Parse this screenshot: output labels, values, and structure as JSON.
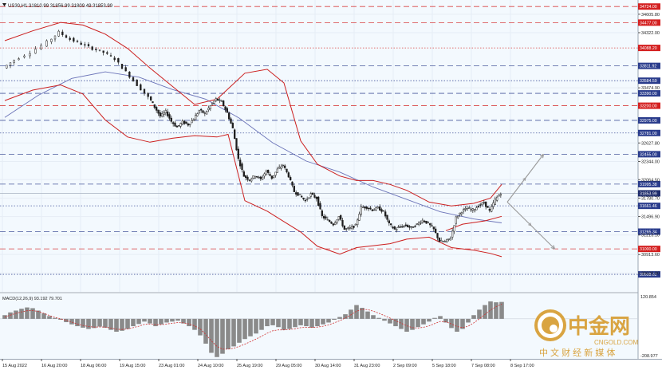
{
  "header": {
    "symbol_label": "US30,H1",
    "ohlc_label": "31810.99 31856.99 31809.49 31853.99"
  },
  "macd": {
    "label": "MACD(12,26,9) 93.192 79.701",
    "axis_top": "120.854",
    "axis_bottom": "-208.977"
  },
  "watermark": {
    "brand": "中金网",
    "site": "CNGOLD.COM",
    "slogan": "中 文 财 经 新 媒 体"
  },
  "colors": {
    "bg": "#ffffff",
    "plot_bg": "#f3f9fe",
    "grid": "#e6edf5",
    "candle": "#1e1e1e",
    "bollinger": "#cc1f1f",
    "ma": "#6b73b8",
    "red_level": "#d42020",
    "blue_level": "#2a3c8c",
    "arrow": "#9a9a9a",
    "current_price_bg": "#1e2b6b",
    "histogram": "#8a8a8a",
    "signal": "#d03030",
    "watermark_gold": "#d9a441"
  },
  "chart_data": {
    "type": "candlestick",
    "title": "",
    "ylim": [
      30340,
      34800
    ],
    "y_ticks": [
      "34605.80",
      "34322.00",
      "33474.90",
      "32627.80",
      "32344.00",
      "32064.50",
      "31780.70",
      "31496.90",
      "31213.10",
      "30913.60",
      "30629.80"
    ],
    "x_ticks": [
      "15 Aug 2022",
      "16 Aug 20:00",
      "18 Aug 06:00",
      "19 Aug 15:00",
      "23 Aug 01:00",
      "24 Aug 10:00",
      "25 Aug 19:00",
      "29 Aug 05:00",
      "30 Aug 14:00",
      "31 Aug 23:00",
      "2 Sep 09:00",
      "5 Sep 18:00",
      "7 Sep 08:00",
      "8 Sep 17:00"
    ],
    "current_price": {
      "value": 31853.99,
      "label": "31853.99"
    },
    "levels": [
      {
        "value": 34724.0,
        "label": "34724.00",
        "kind": "red",
        "style": "dash"
      },
      {
        "value": 34477.0,
        "label": "34477.00",
        "kind": "red",
        "style": "dash"
      },
      {
        "value": 34088.2,
        "label": "34088.20",
        "kind": "red",
        "style": "dot"
      },
      {
        "value": 33811.92,
        "label": "33811.92",
        "kind": "blue",
        "style": "dash"
      },
      {
        "value": 33584.59,
        "label": "33584.59",
        "kind": "blue",
        "style": "dot"
      },
      {
        "value": 33390.0,
        "label": "33390.00",
        "kind": "blue",
        "style": "dash"
      },
      {
        "value": 33200.0,
        "label": "33200.00",
        "kind": "red",
        "style": "dash"
      },
      {
        "value": 32975.0,
        "label": "32975.00",
        "kind": "blue",
        "style": "dash"
      },
      {
        "value": 32781.0,
        "label": "32781.00",
        "kind": "blue",
        "style": "dot"
      },
      {
        "value": 32455.0,
        "label": "32455.00",
        "kind": "blue",
        "style": "dash"
      },
      {
        "value": 31995.38,
        "label": "31995.38",
        "kind": "blue",
        "style": "dash"
      },
      {
        "value": 31661.46,
        "label": "31661.46",
        "kind": "blue",
        "style": "dot"
      },
      {
        "value": 31265.34,
        "label": "31265.34",
        "kind": "blue",
        "style": "dash"
      },
      {
        "value": 31000.0,
        "label": "31000.00",
        "kind": "red",
        "style": "dash"
      },
      {
        "value": 30608.62,
        "label": "30608.62",
        "kind": "blue",
        "style": "dot"
      }
    ],
    "close_path": [
      [
        0,
        33780
      ],
      [
        2,
        33900
      ],
      [
        5,
        34020
      ],
      [
        8,
        34180
      ],
      [
        10,
        34330
      ],
      [
        12,
        34220
      ],
      [
        14,
        34150
      ],
      [
        16,
        34080
      ],
      [
        18,
        34020
      ],
      [
        20,
        33920
      ],
      [
        22,
        33720
      ],
      [
        24,
        33520
      ],
      [
        26,
        33330
      ],
      [
        27,
        33180
      ],
      [
        28,
        33040
      ],
      [
        29,
        33110
      ],
      [
        30,
        32960
      ],
      [
        31,
        32870
      ],
      [
        32,
        32950
      ],
      [
        33,
        32910
      ],
      [
        34,
        33000
      ],
      [
        35,
        33130
      ],
      [
        36,
        33080
      ],
      [
        37,
        33200
      ],
      [
        38,
        33300
      ],
      [
        39,
        33260
      ],
      [
        40,
        33090
      ],
      [
        41,
        32850
      ],
      [
        42,
        32380
      ],
      [
        43,
        32120
      ],
      [
        44,
        32060
      ],
      [
        45,
        32130
      ],
      [
        46,
        32070
      ],
      [
        47,
        32200
      ],
      [
        48,
        32090
      ],
      [
        49,
        32220
      ],
      [
        50,
        32290
      ],
      [
        51,
        32120
      ],
      [
        52,
        31880
      ],
      [
        53,
        31820
      ],
      [
        54,
        31740
      ],
      [
        55,
        31840
      ],
      [
        56,
        31780
      ],
      [
        57,
        31500
      ],
      [
        58,
        31440
      ],
      [
        59,
        31380
      ],
      [
        60,
        31500
      ],
      [
        61,
        31300
      ],
      [
        62,
        31320
      ],
      [
        63,
        31360
      ],
      [
        64,
        31640
      ],
      [
        65,
        31640
      ],
      [
        66,
        31600
      ],
      [
        67,
        31630
      ],
      [
        68,
        31570
      ],
      [
        69,
        31380
      ],
      [
        70,
        31300
      ],
      [
        71,
        31340
      ],
      [
        72,
        31360
      ],
      [
        73,
        31320
      ],
      [
        74,
        31380
      ],
      [
        75,
        31440
      ],
      [
        76,
        31390
      ],
      [
        77,
        31300
      ],
      [
        78,
        31120
      ],
      [
        79,
        31110
      ],
      [
        80,
        31170
      ],
      [
        81,
        31480
      ],
      [
        82,
        31580
      ],
      [
        83,
        31620
      ],
      [
        84,
        31600
      ],
      [
        85,
        31660
      ],
      [
        86,
        31710
      ],
      [
        87,
        31580
      ],
      [
        88,
        31760
      ],
      [
        89,
        31860
      ]
    ],
    "bollinger_upper": [
      [
        0,
        34200
      ],
      [
        5,
        34350
      ],
      [
        10,
        34480
      ],
      [
        14,
        34440
      ],
      [
        18,
        34300
      ],
      [
        22,
        34080
      ],
      [
        26,
        33780
      ],
      [
        30,
        33500
      ],
      [
        34,
        33220
      ],
      [
        38,
        33300
      ],
      [
        40,
        33460
      ],
      [
        43,
        33700
      ],
      [
        47,
        33760
      ],
      [
        50,
        33550
      ],
      [
        53,
        32660
      ],
      [
        56,
        32300
      ],
      [
        60,
        32120
      ],
      [
        63,
        32050
      ],
      [
        66,
        32050
      ],
      [
        69,
        31990
      ],
      [
        72,
        31900
      ],
      [
        76,
        31720
      ],
      [
        80,
        31660
      ],
      [
        84,
        31700
      ],
      [
        87,
        31780
      ],
      [
        89,
        31990
      ]
    ],
    "bollinger_lower": [
      [
        0,
        33280
      ],
      [
        5,
        33440
      ],
      [
        10,
        33520
      ],
      [
        14,
        33380
      ],
      [
        18,
        32980
      ],
      [
        22,
        32720
      ],
      [
        26,
        32640
      ],
      [
        30,
        32700
      ],
      [
        34,
        32740
      ],
      [
        38,
        32720
      ],
      [
        40,
        32760
      ],
      [
        43,
        31740
      ],
      [
        47,
        31580
      ],
      [
        50,
        31420
      ],
      [
        53,
        31260
      ],
      [
        56,
        31040
      ],
      [
        60,
        30920
      ],
      [
        63,
        31020
      ],
      [
        66,
        31050
      ],
      [
        69,
        31080
      ],
      [
        72,
        31150
      ],
      [
        76,
        31180
      ],
      [
        80,
        31020
      ],
      [
        84,
        30980
      ],
      [
        87,
        30930
      ],
      [
        89,
        30880
      ]
    ],
    "bollinger_middle": [
      [
        79,
        31280
      ],
      [
        82,
        31380
      ],
      [
        86,
        31430
      ],
      [
        89,
        31500
      ]
    ],
    "ma": [
      [
        0,
        33020
      ],
      [
        6,
        33360
      ],
      [
        12,
        33620
      ],
      [
        18,
        33720
      ],
      [
        24,
        33640
      ],
      [
        30,
        33450
      ],
      [
        36,
        33300
      ],
      [
        42,
        33010
      ],
      [
        48,
        32630
      ],
      [
        54,
        32350
      ],
      [
        60,
        32180
      ],
      [
        66,
        31950
      ],
      [
        72,
        31760
      ],
      [
        78,
        31570
      ],
      [
        84,
        31460
      ],
      [
        89,
        31400
      ]
    ],
    "projection": {
      "start": [
        90,
        31720
      ],
      "targets": [
        [
          96.5,
          32455
        ],
        [
          98.5,
          31000
        ]
      ]
    },
    "macd_histogram": [
      20,
      35,
      45,
      55,
      62,
      58,
      45,
      30,
      15,
      5,
      -5,
      -18,
      -30,
      -40,
      -48,
      -55,
      -50,
      -42,
      -48,
      -60,
      -70,
      -65,
      -55,
      -40,
      -28,
      -15,
      -25,
      -40,
      -30,
      -20,
      -15,
      -10,
      -25,
      -40,
      -60,
      -90,
      -135,
      -185,
      -208,
      -190,
      -165,
      -150,
      -130,
      -110,
      -95,
      -80,
      -60,
      -40,
      -35,
      -45,
      -60,
      -55,
      -45,
      -35,
      -40,
      -48,
      -40,
      -30,
      -20,
      -5,
      10,
      25,
      50,
      75,
      60,
      40,
      20,
      5,
      -10,
      -25,
      -40,
      -55,
      -70,
      -60,
      -45,
      -30,
      -15,
      5,
      15,
      -20,
      -50,
      -70,
      -55,
      -20,
      20,
      50,
      75,
      95,
      90,
      92
    ],
    "macd_signal": [
      10,
      20,
      30,
      38,
      44,
      45,
      40,
      30,
      18,
      8,
      0,
      -8,
      -18,
      -28,
      -36,
      -42,
      -45,
      -44,
      -45,
      -50,
      -56,
      -58,
      -55,
      -48,
      -40,
      -30,
      -28,
      -32,
      -32,
      -28,
      -24,
      -20,
      -22,
      -28,
      -38,
      -55,
      -85,
      -120,
      -150,
      -165,
      -165,
      -160,
      -150,
      -138,
      -124,
      -110,
      -95,
      -78,
      -65,
      -60,
      -60,
      -58,
      -54,
      -48,
      -46,
      -47,
      -45,
      -40,
      -33,
      -22,
      -10,
      5,
      22,
      42,
      52,
      50,
      42,
      30,
      18,
      4,
      -10,
      -24,
      -38,
      -48,
      -50,
      -46,
      -38,
      -26,
      -14,
      -16,
      -28,
      -42,
      -48,
      -40,
      -22,
      0,
      24,
      48,
      66,
      80
    ]
  }
}
